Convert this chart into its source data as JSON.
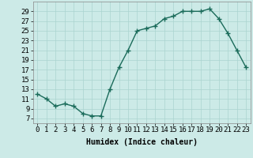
{
  "x": [
    0,
    1,
    2,
    3,
    4,
    5,
    6,
    7,
    8,
    9,
    10,
    11,
    12,
    13,
    14,
    15,
    16,
    17,
    18,
    19,
    20,
    21,
    22,
    23
  ],
  "y": [
    12,
    11,
    9.5,
    10,
    9.5,
    8,
    7.5,
    7.5,
    13,
    17.5,
    21,
    25,
    25.5,
    26,
    27.5,
    28,
    29,
    29,
    29,
    29.5,
    27.5,
    24.5,
    21,
    17.5
  ],
  "line_color": "#1a6b5a",
  "marker": "+",
  "markersize": 4,
  "linewidth": 1.0,
  "markeredgewidth": 1.0,
  "bg_color": "#cceae7",
  "grid_color": "#aad4d0",
  "xlabel": "Humidex (Indice chaleur)",
  "xlabel_fontsize": 7,
  "tick_fontsize": 6.5,
  "ylim": [
    6,
    31
  ],
  "xlim": [
    -0.5,
    23.5
  ],
  "yticks": [
    7,
    9,
    11,
    13,
    15,
    17,
    19,
    21,
    23,
    25,
    27,
    29
  ],
  "xticks": [
    0,
    1,
    2,
    3,
    4,
    5,
    6,
    7,
    8,
    9,
    10,
    11,
    12,
    13,
    14,
    15,
    16,
    17,
    18,
    19,
    20,
    21,
    22,
    23
  ]
}
